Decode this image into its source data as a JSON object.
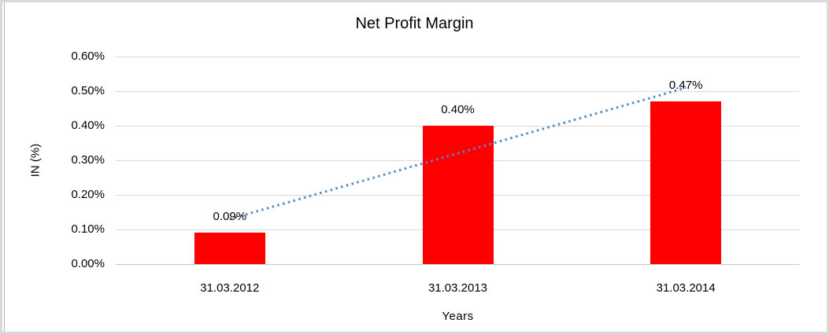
{
  "chart_data": {
    "type": "bar",
    "title": "Net Profit Margin",
    "xlabel": "Years",
    "ylabel": "IN (%)",
    "categories": [
      "31.03.2012",
      "31.03.2013",
      "31.03.2014"
    ],
    "values": [
      0.09,
      0.4,
      0.47
    ],
    "data_labels": [
      "0.09%",
      "0.40%",
      "0.47%"
    ],
    "yticks": [
      0,
      0.1,
      0.2,
      0.3,
      0.4,
      0.5,
      0.6
    ],
    "ytick_labels": [
      "0.00%",
      "0.10%",
      "0.20%",
      "0.30%",
      "0.40%",
      "0.50%",
      "0.60%"
    ],
    "ylim": [
      0,
      0.6
    ],
    "grid": true,
    "legend": "none",
    "trendline": {
      "type": "linear",
      "style": "dotted",
      "color": "#4e8bc8"
    },
    "colors": {
      "bar": "#ff0000",
      "gridline": "#d9d9d9",
      "axis_line": "#c6c6c6",
      "text": "#000000",
      "frame_border": "#d9d9d9"
    }
  }
}
